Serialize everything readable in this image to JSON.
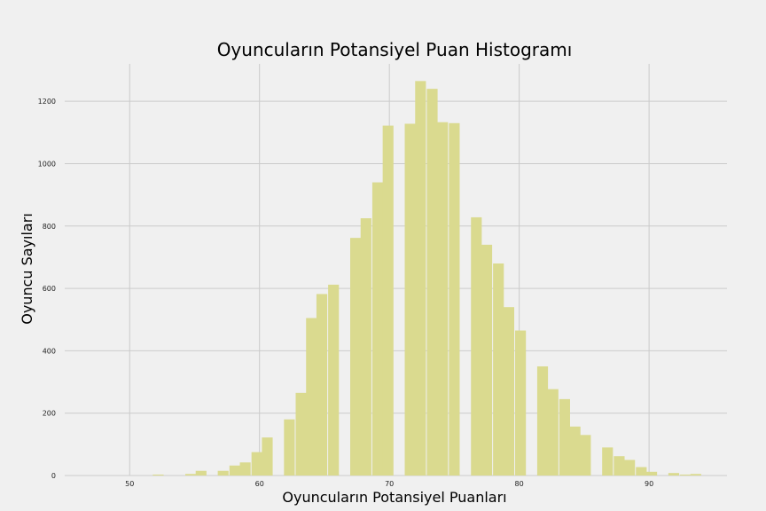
{
  "chart_data": {
    "type": "bar",
    "title": "Oyuncuların Potansiyel Puan Histogramı",
    "xlabel": "Oyuncuların Potansiyel Puanları",
    "ylabel": "Oyuncu Sayıları",
    "xlim": [
      45,
      96
    ],
    "ylim": [
      0,
      1320
    ],
    "xticks": [
      50,
      60,
      70,
      80,
      90
    ],
    "yticks": [
      0,
      200,
      400,
      600,
      800,
      1000,
      1200
    ],
    "grid": true,
    "bar_color": "#dada8f",
    "bar_width": 0.83,
    "bins": [
      {
        "x": 52.2,
        "value": 3
      },
      {
        "x": 54.7,
        "value": 5
      },
      {
        "x": 55.5,
        "value": 15
      },
      {
        "x": 57.2,
        "value": 15
      },
      {
        "x": 58.1,
        "value": 32
      },
      {
        "x": 58.9,
        "value": 42
      },
      {
        "x": 59.8,
        "value": 75
      },
      {
        "x": 60.6,
        "value": 122
      },
      {
        "x": 62.3,
        "value": 180
      },
      {
        "x": 63.2,
        "value": 265
      },
      {
        "x": 64.0,
        "value": 505
      },
      {
        "x": 64.8,
        "value": 582
      },
      {
        "x": 65.7,
        "value": 612
      },
      {
        "x": 67.4,
        "value": 762
      },
      {
        "x": 68.2,
        "value": 825
      },
      {
        "x": 69.1,
        "value": 940
      },
      {
        "x": 69.9,
        "value": 1122
      },
      {
        "x": 71.6,
        "value": 1128
      },
      {
        "x": 72.4,
        "value": 1265
      },
      {
        "x": 73.3,
        "value": 1240
      },
      {
        "x": 74.1,
        "value": 1133
      },
      {
        "x": 75.0,
        "value": 1130
      },
      {
        "x": 76.7,
        "value": 828
      },
      {
        "x": 77.5,
        "value": 740
      },
      {
        "x": 78.4,
        "value": 680
      },
      {
        "x": 79.2,
        "value": 540
      },
      {
        "x": 80.1,
        "value": 465
      },
      {
        "x": 81.8,
        "value": 350
      },
      {
        "x": 82.6,
        "value": 277
      },
      {
        "x": 83.5,
        "value": 245
      },
      {
        "x": 84.3,
        "value": 157
      },
      {
        "x": 85.1,
        "value": 130
      },
      {
        "x": 86.8,
        "value": 90
      },
      {
        "x": 87.7,
        "value": 62
      },
      {
        "x": 88.5,
        "value": 50
      },
      {
        "x": 89.4,
        "value": 27
      },
      {
        "x": 90.2,
        "value": 12
      },
      {
        "x": 91.9,
        "value": 8
      },
      {
        "x": 92.8,
        "value": 3
      },
      {
        "x": 93.6,
        "value": 5
      }
    ]
  }
}
